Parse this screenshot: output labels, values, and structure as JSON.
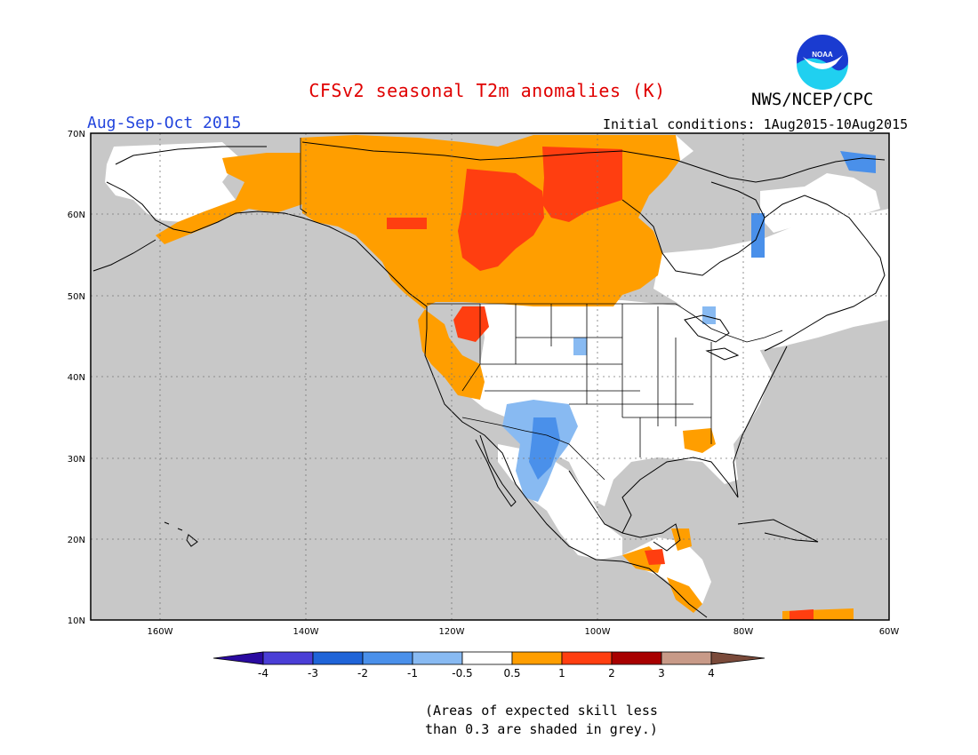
{
  "header": {
    "title": "CFSv2 seasonal T2m anomalies (K)",
    "agency": "NWS/NCEP/CPC",
    "logo_text": "NOAA",
    "season": "Aug-Sep-Oct 2015",
    "initial_conditions": "Initial conditions: 1Aug2015-10Aug2015"
  },
  "map": {
    "lon_labels": [
      "160W",
      "140W",
      "120W",
      "100W",
      "80W",
      "60W"
    ],
    "lat_labels": [
      "70N",
      "60N",
      "50N",
      "40N",
      "30N",
      "20N",
      "10N"
    ]
  },
  "colorbar": {
    "labels": [
      "-4",
      "-3",
      "-2",
      "-1",
      "-0.5",
      "0.5",
      "1",
      "2",
      "3",
      "4"
    ],
    "colors": [
      "#2a0aa0",
      "#4a3ed6",
      "#1f64d8",
      "#4a90ea",
      "#88baf2",
      "#ffffff",
      "#ff9e00",
      "#ff3e10",
      "#a80000",
      "#c89a88",
      "#7a4a3a"
    ]
  },
  "note": {
    "line1": "(Areas of expected skill less",
    "line2": "than 0.3 are shaded in grey.)"
  },
  "colors": {
    "grey": "#c8c8c8",
    "orange": "#ff9e00",
    "red": "#ff3e10",
    "lightblue": "#88baf2",
    "blue": "#4a90ea"
  }
}
